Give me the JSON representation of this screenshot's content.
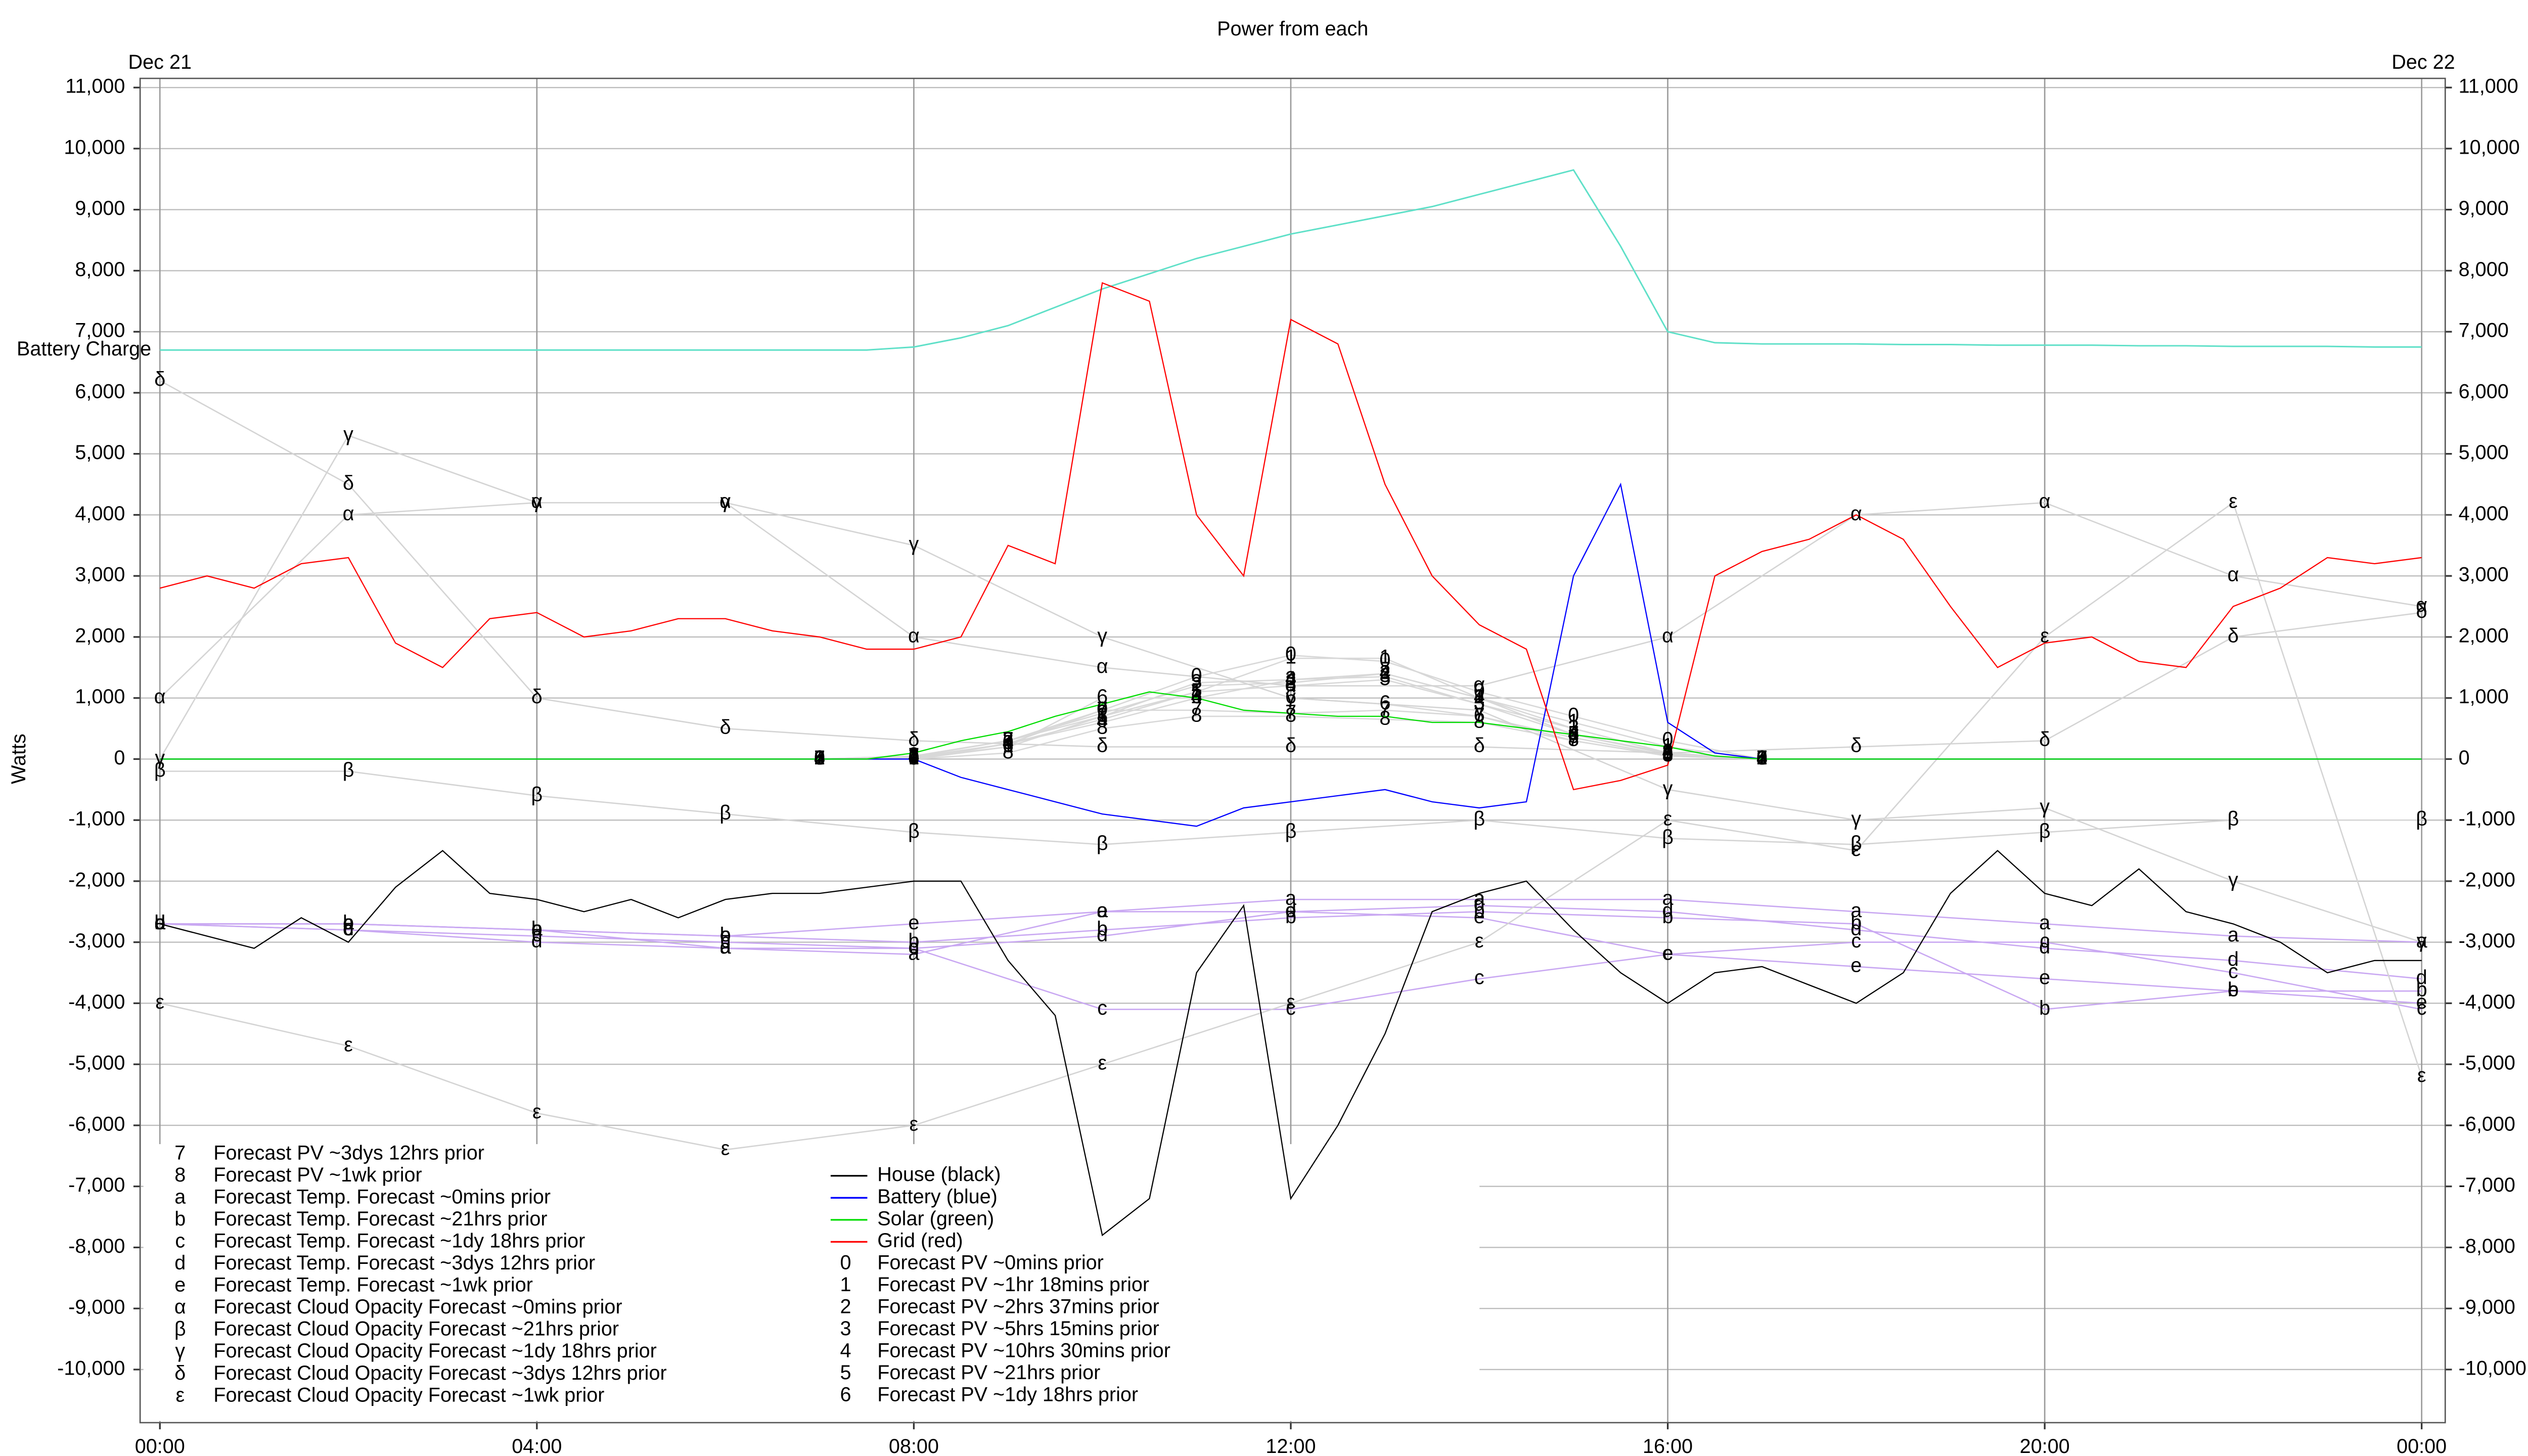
{
  "chart_data": {
    "type": "line",
    "title": "Power from each",
    "y_label": "Watts",
    "date_labels": [
      {
        "value": 0,
        "label": "Dec 21"
      },
      {
        "value": 24,
        "label": "Dec 22"
      }
    ],
    "xlim": [
      -0.21,
      24.25
    ],
    "xticks": [
      {
        "value": 0,
        "label": "00:00"
      },
      {
        "value": 4,
        "label": "04:00"
      },
      {
        "value": 8,
        "label": "08:00"
      },
      {
        "value": 12,
        "label": "12:00"
      },
      {
        "value": 16,
        "label": "16:00"
      },
      {
        "value": 20,
        "label": "20:00"
      },
      {
        "value": 24,
        "label": "00:00"
      }
    ],
    "ylim": [
      -10870,
      11150
    ],
    "yticks": [
      {
        "value": -10000,
        "label": "-10,000"
      },
      {
        "value": -9000,
        "label": "-9,000"
      },
      {
        "value": -8000,
        "label": "-8,000"
      },
      {
        "value": -7000,
        "label": "-7,000"
      },
      {
        "value": -6000,
        "label": "-6,000"
      },
      {
        "value": -5000,
        "label": "-5,000"
      },
      {
        "value": -4000,
        "label": "-4,000"
      },
      {
        "value": -3000,
        "label": "-3,000"
      },
      {
        "value": -2000,
        "label": "-2,000"
      },
      {
        "value": -1000,
        "label": "-1,000"
      },
      0,
      {
        "value": 1000,
        "label": "1,000"
      },
      {
        "value": 2000,
        "label": "2,000"
      },
      {
        "value": 3000,
        "label": "3,000"
      },
      {
        "value": 4000,
        "label": "4,000"
      },
      {
        "value": 5000,
        "label": "5,000"
      },
      {
        "value": 6000,
        "label": "6,000"
      },
      {
        "value": 7000,
        "label": "7,000"
      },
      {
        "value": 8000,
        "label": "8,000"
      },
      {
        "value": 9000,
        "label": "9,000"
      },
      {
        "value": 10000,
        "label": "10,000"
      },
      {
        "value": 11000,
        "label": "11,000"
      }
    ],
    "grid": true,
    "x": [
      0,
      0.5,
      1,
      1.5,
      2,
      2.5,
      3,
      3.5,
      4,
      4.5,
      5,
      5.5,
      6,
      6.5,
      7,
      7.5,
      8,
      8.5,
      9,
      9.5,
      10,
      10.5,
      11,
      11.5,
      12,
      12.5,
      13,
      13.5,
      14,
      14.5,
      15,
      15.5,
      16,
      16.5,
      17,
      17.5,
      18,
      18.5,
      19,
      19.5,
      20,
      20.5,
      21,
      21.5,
      22,
      22.5,
      23,
      23.5,
      24
    ],
    "battery_charge": {
      "name": "Battery Charge",
      "color": "#5fe0c8",
      "values": [
        6700,
        6700,
        6700,
        6700,
        6700,
        6700,
        6700,
        6700,
        6700,
        6700,
        6700,
        6700,
        6700,
        6700,
        6700,
        6700,
        6750,
        6900,
        7100,
        7400,
        7700,
        7950,
        8200,
        8400,
        8600,
        8750,
        8900,
        9050,
        9250,
        9450,
        9650,
        8400,
        7000,
        6820,
        6800,
        6800,
        6800,
        6790,
        6790,
        6780,
        6780,
        6780,
        6770,
        6770,
        6760,
        6760,
        6760,
        6750,
        6750
      ]
    },
    "series": [
      {
        "name": "House (black)",
        "color": "#000000",
        "values": [
          -2700,
          -2900,
          -3100,
          -2600,
          -3000,
          -2100,
          -1500,
          -2200,
          -2300,
          -2500,
          -2300,
          -2600,
          -2300,
          -2200,
          -2200,
          -2100,
          -2000,
          -2000,
          -3300,
          -4200,
          -7800,
          -7200,
          -3500,
          -2400,
          -7200,
          -6000,
          -4500,
          -2500,
          -2200,
          -2000,
          -2800,
          -3500,
          -4000,
          -3500,
          -3400,
          -3700,
          -4000,
          -3500,
          -2200,
          -1500,
          -2200,
          -2400,
          -1800,
          -2500,
          -2700,
          -3000,
          -3500,
          -3300,
          -3300
        ]
      },
      {
        "name": "Battery (blue)",
        "color": "#0000ff",
        "values": [
          0,
          0,
          0,
          0,
          0,
          0,
          0,
          0,
          0,
          0,
          0,
          0,
          0,
          0,
          0,
          0,
          0,
          -300,
          -500,
          -700,
          -900,
          -1000,
          -1100,
          -800,
          -700,
          -600,
          -500,
          -700,
          -800,
          -700,
          3000,
          4500,
          600,
          100,
          0,
          0,
          0,
          0,
          0,
          0,
          0,
          0,
          0,
          0,
          0,
          0,
          0,
          0,
          0
        ]
      },
      {
        "name": "Solar (green)",
        "color": "#00dd00",
        "values": [
          0,
          0,
          0,
          0,
          0,
          0,
          0,
          0,
          0,
          0,
          0,
          0,
          0,
          0,
          0,
          0,
          100,
          300,
          450,
          700,
          900,
          1100,
          1000,
          800,
          750,
          700,
          700,
          600,
          600,
          500,
          400,
          300,
          200,
          50,
          0,
          0,
          0,
          0,
          0,
          0,
          0,
          0,
          0,
          0,
          0,
          0,
          0,
          0,
          0
        ]
      },
      {
        "name": "Grid (red)",
        "color": "#ff0000",
        "values": [
          2800,
          3000,
          2800,
          3200,
          3300,
          1900,
          1500,
          2300,
          2400,
          2000,
          2100,
          2300,
          2300,
          2100,
          2000,
          1800,
          1800,
          2000,
          3500,
          3200,
          7800,
          7500,
          4000,
          3000,
          7200,
          6800,
          4500,
          3000,
          2200,
          1800,
          -500,
          -350,
          -100,
          3000,
          3400,
          3600,
          4000,
          3600,
          2500,
          1500,
          1900,
          2000,
          1600,
          1500,
          2500,
          2800,
          3300,
          3200,
          3300
        ]
      },
      {
        "name": "Forecast PV ~0mins prior",
        "marker": "0",
        "color": "#d8d8d8",
        "x": [
          7,
          8,
          9,
          10,
          11,
          12,
          13,
          14,
          15,
          16,
          17
        ],
        "values": [
          0,
          0,
          250,
          800,
          1350,
          1700,
          1600,
          1100,
          700,
          300,
          0
        ]
      },
      {
        "name": "Forecast PV ~1hr 18mins prior",
        "marker": "1",
        "color": "#d8d8d8",
        "x": [
          7,
          8,
          9,
          10,
          11,
          12,
          13,
          14,
          15,
          16,
          17
        ],
        "values": [
          0,
          0,
          200,
          700,
          1100,
          1650,
          1650,
          1000,
          600,
          200,
          0
        ]
      },
      {
        "name": "Forecast PV ~2hrs 37mins prior",
        "marker": "2",
        "color": "#d8d8d8",
        "x": [
          7,
          8,
          9,
          10,
          11,
          12,
          13,
          14,
          15,
          16,
          17
        ],
        "values": [
          0,
          50,
          300,
          750,
          1200,
          1250,
          1400,
          1000,
          500,
          100,
          0
        ]
      },
      {
        "name": "Forecast PV ~5hrs 15mins prior",
        "marker": "3",
        "color": "#d8d8d8",
        "x": [
          7,
          8,
          9,
          10,
          11,
          12,
          13,
          14,
          15,
          16,
          17
        ],
        "values": [
          0,
          50,
          300,
          700,
          1250,
          1300,
          1350,
          900,
          500,
          100,
          0
        ]
      },
      {
        "name": "Forecast PV ~10hrs 30mins prior",
        "marker": "4",
        "color": "#d8d8d8",
        "x": [
          7,
          8,
          9,
          10,
          11,
          12,
          13,
          14,
          15,
          16,
          17
        ],
        "values": [
          0,
          30,
          250,
          600,
          1000,
          1300,
          1400,
          1000,
          400,
          100,
          0
        ]
      },
      {
        "name": "Forecast PV ~21hrs prior",
        "marker": "5",
        "color": "#d8d8d8",
        "x": [
          7,
          8,
          9,
          10,
          11,
          12,
          13,
          14,
          15,
          16,
          17
        ],
        "values": [
          0,
          30,
          250,
          650,
          1100,
          1200,
          1300,
          900,
          400,
          80,
          0
        ]
      },
      {
        "name": "Forecast PV ~1dy 18hrs prior",
        "marker": "6",
        "color": "#d8d8d8",
        "x": [
          7,
          8,
          9,
          10,
          11,
          12,
          13,
          14,
          15,
          16,
          17
        ],
        "values": [
          0,
          20,
          200,
          1000,
          1000,
          1000,
          900,
          700,
          350,
          60,
          0
        ]
      },
      {
        "name": "Forecast PV ~3dys 12hrs prior",
        "marker": "7",
        "color": "#d8d8d8",
        "x": [
          7,
          8,
          9,
          10,
          11,
          12,
          13,
          14,
          15,
          16,
          17
        ],
        "values": [
          0,
          40,
          300,
          800,
          800,
          750,
          800,
          700,
          300,
          50,
          0
        ]
      },
      {
        "name": "Forecast PV ~1wk prior",
        "marker": "8",
        "color": "#d8d8d8",
        "x": [
          7,
          8,
          9,
          10,
          11,
          12,
          13,
          14,
          15,
          16,
          17
        ],
        "values": [
          0,
          0,
          100,
          500,
          700,
          700,
          650,
          600,
          300,
          50,
          0
        ]
      },
      {
        "name": "Forecast Temp. Forecast ~0mins prior",
        "marker": "a",
        "color": "#c9a8f2",
        "x": [
          0,
          2,
          4,
          6,
          8,
          10,
          12,
          14,
          16,
          18,
          20,
          22,
          24
        ],
        "values": [
          -2700,
          -2700,
          -2800,
          -3100,
          -3200,
          -2500,
          -2300,
          -2300,
          -2300,
          -2500,
          -2700,
          -2900,
          -3000
        ]
      },
      {
        "name": "Forecast Temp. Forecast ~21hrs prior",
        "marker": "b",
        "color": "#c9a8f2",
        "x": [
          0,
          2,
          4,
          6,
          8,
          10,
          12,
          14,
          16,
          18,
          20,
          22,
          24
        ],
        "values": [
          -2700,
          -2700,
          -2800,
          -2900,
          -3000,
          -2800,
          -2600,
          -2500,
          -2600,
          -2700,
          -4100,
          -3800,
          -3800
        ]
      },
      {
        "name": "Forecast Temp. Forecast ~1dy 18hrs prior",
        "marker": "c",
        "color": "#c9a8f2",
        "x": [
          0,
          2,
          4,
          6,
          8,
          10,
          12,
          14,
          16,
          18,
          20,
          22,
          24
        ],
        "values": [
          -2700,
          -2800,
          -2900,
          -3000,
          -3100,
          -4100,
          -4100,
          -3600,
          -3200,
          -3000,
          -3000,
          -3500,
          -4100
        ]
      },
      {
        "name": "Forecast Temp. Forecast ~3dys 12hrs prior",
        "marker": "d",
        "color": "#c9a8f2",
        "x": [
          0,
          2,
          4,
          6,
          8,
          10,
          12,
          14,
          16,
          18,
          20,
          22,
          24
        ],
        "values": [
          -2700,
          -2800,
          -3000,
          -3100,
          -3100,
          -2900,
          -2500,
          -2400,
          -2500,
          -2800,
          -3100,
          -3300,
          -3600
        ]
      },
      {
        "name": "Forecast Temp. Forecast ~1wk prior",
        "marker": "e",
        "color": "#c9a8f2",
        "x": [
          0,
          2,
          4,
          6,
          8,
          10,
          12,
          14,
          16,
          18,
          20,
          22,
          24
        ],
        "values": [
          -2700,
          -2700,
          -2800,
          -2900,
          -2700,
          -2500,
          -2500,
          -2600,
          -3200,
          -3400,
          -3600,
          -3800,
          -4000
        ]
      },
      {
        "name": "Forecast Cloud Opacity Forecast ~0mins prior",
        "marker": "α",
        "color": "#d4d4d4",
        "x": [
          0,
          2,
          4,
          6,
          8,
          10,
          12,
          14,
          16,
          18,
          20,
          22,
          24
        ],
        "values": [
          1000,
          4000,
          4200,
          4200,
          2000,
          1500,
          1200,
          1200,
          2000,
          4000,
          4200,
          3000,
          2500
        ]
      },
      {
        "name": "Forecast Cloud Opacity Forecast ~21hrs prior",
        "marker": "β",
        "color": "#d4d4d4",
        "x": [
          0,
          2,
          4,
          6,
          8,
          10,
          12,
          14,
          16,
          18,
          20,
          22,
          24
        ],
        "values": [
          -200,
          -200,
          -600,
          -900,
          -1200,
          -1400,
          -1200,
          -1000,
          -1300,
          -1400,
          -1200,
          -1000,
          -1000
        ]
      },
      {
        "name": "Forecast Cloud Opacity Forecast ~1dy 18hrs prior",
        "marker": "γ",
        "color": "#d4d4d4",
        "x": [
          0,
          2,
          4,
          6,
          8,
          10,
          12,
          14,
          16,
          18,
          20,
          22,
          24
        ],
        "values": [
          0,
          5300,
          4200,
          4200,
          3500,
          2000,
          1000,
          800,
          -500,
          -1000,
          -800,
          -2000,
          -3000
        ]
      },
      {
        "name": "Forecast Cloud Opacity Forecast ~3dys 12hrs prior",
        "marker": "δ",
        "color": "#d4d4d4",
        "x": [
          0,
          2,
          4,
          6,
          8,
          10,
          12,
          14,
          16,
          18,
          20,
          22,
          24
        ],
        "values": [
          6200,
          4500,
          1000,
          500,
          300,
          200,
          200,
          200,
          100,
          200,
          300,
          2000,
          2400
        ]
      },
      {
        "name": "Forecast Cloud Opacity Forecast ~1wk prior",
        "marker": "ε",
        "color": "#d4d4d4",
        "x": [
          0,
          2,
          4,
          6,
          8,
          10,
          12,
          14,
          16,
          18,
          20,
          22,
          24
        ],
        "values": [
          -4000,
          -4700,
          -5800,
          -6400,
          -6000,
          -5000,
          -4000,
          -3000,
          -1000,
          -1500,
          2000,
          4200,
          -5200
        ]
      }
    ]
  }
}
